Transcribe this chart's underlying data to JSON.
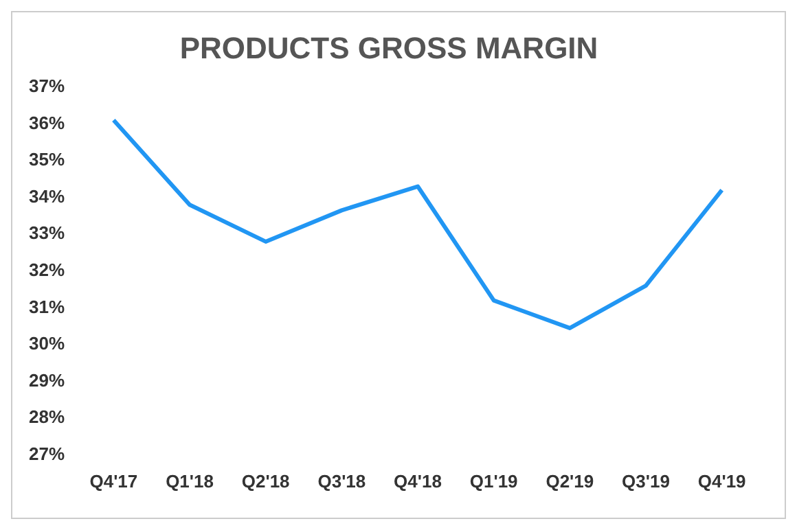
{
  "chart_data": {
    "type": "line",
    "title": "PRODUCTS GROSS MARGIN",
    "categories": [
      "Q4'17",
      "Q1'18",
      "Q2'18",
      "Q3'18",
      "Q4'18",
      "Q1'19",
      "Q2'19",
      "Q3'19",
      "Q4'19"
    ],
    "series": [
      {
        "color": "#2196f3",
        "values": [
          36.1,
          33.8,
          32.8,
          33.65,
          34.3,
          31.2,
          30.45,
          31.6,
          34.2
        ]
      }
    ],
    "ylim": [
      27,
      37
    ],
    "yticks": [
      {
        "value": 27,
        "label": "27%"
      },
      {
        "value": 28,
        "label": "28%"
      },
      {
        "value": 29,
        "label": "29%"
      },
      {
        "value": 30,
        "label": "30%"
      },
      {
        "value": 31,
        "label": "31%"
      },
      {
        "value": 32,
        "label": "32%"
      },
      {
        "value": 33,
        "label": "33%"
      },
      {
        "value": 34,
        "label": "34%"
      },
      {
        "value": 35,
        "label": "35%"
      },
      {
        "value": 36,
        "label": "36%"
      },
      {
        "value": 37,
        "label": "37%"
      }
    ],
    "grid": false,
    "legend": false,
    "marker": "none",
    "line_style": "solid"
  }
}
